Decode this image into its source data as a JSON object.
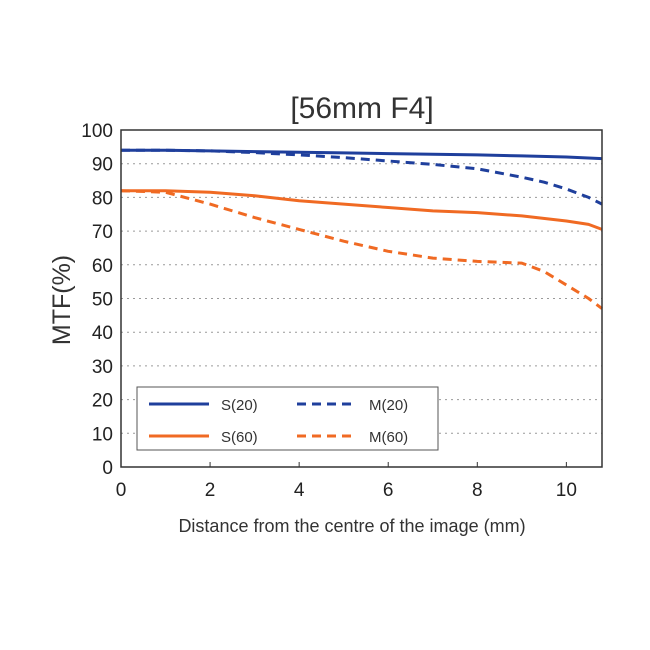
{
  "chart_data": {
    "type": "line",
    "title": "[56mm F4]",
    "xlabel": "Distance from the centre of the image (mm)",
    "ylabel": "MTF(%)",
    "xlim": [
      0,
      10.8
    ],
    "ylim": [
      0,
      100
    ],
    "xticks": [
      "0",
      "2",
      "4",
      "6",
      "8",
      "10"
    ],
    "yticks": [
      "0",
      "10",
      "20",
      "30",
      "40",
      "50",
      "60",
      "70",
      "80",
      "90",
      "100"
    ],
    "grid": "horizontal dotted",
    "legend_position": "bottom-left",
    "series": [
      {
        "name": "S(20)",
        "color": "#1f3f9c",
        "dash": "solid",
        "x": [
          0,
          1,
          2,
          3,
          4,
          5,
          6,
          7,
          8,
          9,
          10,
          10.8
        ],
        "y": [
          94,
          94,
          93.8,
          93.6,
          93.4,
          93.2,
          93,
          92.8,
          92.6,
          92.3,
          92,
          91.5
        ]
      },
      {
        "name": "M(20)",
        "color": "#1f3f9c",
        "dash": "dashed",
        "x": [
          0,
          1,
          2,
          3,
          4,
          5,
          6,
          7,
          8,
          9,
          9.5,
          10,
          10.5,
          10.8
        ],
        "y": [
          94,
          94,
          93.8,
          93.3,
          92.6,
          91.8,
          90.8,
          89.8,
          88.5,
          86,
          84.5,
          82.5,
          80,
          78
        ]
      },
      {
        "name": "S(60)",
        "color": "#f06a23",
        "dash": "solid",
        "x": [
          0,
          1,
          2,
          3,
          4,
          5,
          6,
          7,
          8,
          9,
          10,
          10.5,
          10.8
        ],
        "y": [
          82,
          82,
          81.5,
          80.5,
          79,
          78,
          77,
          76,
          75.5,
          74.5,
          73,
          72,
          70.5
        ]
      },
      {
        "name": "M(60)",
        "color": "#f06a23",
        "dash": "dashed",
        "x": [
          0,
          1,
          2,
          3,
          4,
          5,
          6,
          7,
          8,
          9,
          9.5,
          10,
          10.5,
          10.8
        ],
        "y": [
          82,
          81.5,
          78,
          74,
          70.5,
          67,
          64,
          62,
          61,
          60.5,
          58,
          54,
          50,
          47
        ]
      }
    ]
  }
}
